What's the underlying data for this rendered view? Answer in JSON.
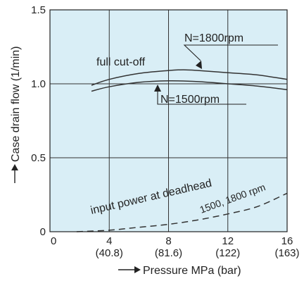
{
  "chart_data": {
    "type": "line",
    "xlabel": "Pressure MPa (bar)",
    "ylabel": "Case drain flow (1/min)",
    "xlim": [
      0,
      16
    ],
    "ylim": [
      0,
      1.5
    ],
    "grid": true,
    "plot_background": "#d9eef6",
    "x_ticks": [
      {
        "value": 0,
        "label": "0",
        "sub": ""
      },
      {
        "value": 4,
        "label": "4",
        "sub": "(40.8)"
      },
      {
        "value": 8,
        "label": "8",
        "sub": "(81.6)"
      },
      {
        "value": 12,
        "label": "12",
        "sub": "(122)"
      },
      {
        "value": 16,
        "label": "16",
        "sub": "(163)"
      }
    ],
    "y_ticks": [
      {
        "value": 0,
        "label": "0"
      },
      {
        "value": 0.5,
        "label": "0.5"
      },
      {
        "value": 1.0,
        "label": "1.0"
      },
      {
        "value": 1.5,
        "label": "1.5"
      }
    ],
    "series": [
      {
        "name": "N=1800rpm",
        "style": "solid",
        "color": "#333333",
        "x": [
          2.8,
          4,
          6,
          8,
          9,
          10,
          12,
          14,
          16
        ],
        "y": [
          0.99,
          1.03,
          1.07,
          1.09,
          1.095,
          1.09,
          1.075,
          1.06,
          1.03
        ]
      },
      {
        "name": "N=1500rpm",
        "style": "solid",
        "color": "#333333",
        "x": [
          2.8,
          4,
          6,
          8,
          10,
          12,
          14,
          16
        ],
        "y": [
          0.95,
          0.98,
          1.01,
          1.02,
          1.015,
          1.0,
          0.985,
          0.96
        ]
      },
      {
        "name": "1500, 1800 rpm",
        "style": "dashed",
        "color": "#333333",
        "x": [
          1.8,
          4,
          6,
          8,
          10,
          12,
          14,
          16
        ],
        "y": [
          0.0,
          0.01,
          0.03,
          0.05,
          0.08,
          0.12,
          0.17,
          0.26
        ]
      }
    ],
    "annotations": [
      {
        "text": "N=1800rpm"
      },
      {
        "text": "N=1500rpm"
      },
      {
        "text": "full cut-off"
      },
      {
        "text": "input power at deadhead"
      },
      {
        "text": "1500, 1800 rpm"
      }
    ]
  }
}
